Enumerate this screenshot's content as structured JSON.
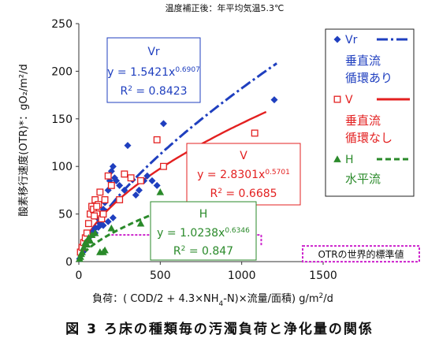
{
  "chart_data": {
    "type": "scatter",
    "title": "温度補正後：年平均気温5.3℃",
    "ylabel": "酸素移行速度(OTR)*：gO₂/m²/d",
    "xlabel_parts": [
      "負荷：( COD/2 + 4.3×NH",
      "4",
      "-N)×流量/面積) g/m",
      "2",
      "/d"
    ],
    "xlim": [
      0,
      1500
    ],
    "ylim": [
      0,
      250
    ],
    "xticks": [
      0,
      500,
      1000,
      1500
    ],
    "yticks": [
      0,
      50,
      100,
      150,
      200,
      250
    ],
    "grid": false,
    "legend_position": "right",
    "series": [
      {
        "key": "vr",
        "legend_label": "Vr",
        "legend_desc": [
          "垂直流",
          "循環あり"
        ],
        "marker": "diamond",
        "color": "#1f3fbf",
        "line_style": "dashdot",
        "fit": {
          "a": 1.5421,
          "b": 0.6907,
          "r2": 0.8423,
          "x_range": [
            5,
            1215
          ]
        },
        "eq_box": {
          "name": "Vr",
          "eq_prefix": "y = 1.5421x",
          "exp": "0.6907",
          "r2_prefix": "R",
          "r2_sup": "2",
          "r2_value": " = 0.8423"
        },
        "points": [
          [
            5,
            3
          ],
          [
            25,
            10
          ],
          [
            45,
            20
          ],
          [
            60,
            25
          ],
          [
            80,
            28
          ],
          [
            85,
            31
          ],
          [
            100,
            35
          ],
          [
            120,
            45
          ],
          [
            130,
            40
          ],
          [
            140,
            50
          ],
          [
            150,
            55
          ],
          [
            160,
            62
          ],
          [
            180,
            75
          ],
          [
            190,
            85
          ],
          [
            200,
            95
          ],
          [
            210,
            100
          ],
          [
            220,
            88
          ],
          [
            230,
            85
          ],
          [
            250,
            80
          ],
          [
            280,
            75
          ],
          [
            300,
            122
          ],
          [
            330,
            86
          ],
          [
            350,
            70
          ],
          [
            370,
            75
          ],
          [
            400,
            85
          ],
          [
            420,
            90
          ],
          [
            450,
            85
          ],
          [
            480,
            80
          ],
          [
            520,
            145
          ],
          [
            1200,
            170
          ],
          [
            180,
            42
          ],
          [
            210,
            46
          ],
          [
            150,
            38
          ],
          [
            120,
            36
          ],
          [
            100,
            30
          ]
        ]
      },
      {
        "key": "v",
        "legend_label": "V",
        "legend_desc": [
          "垂直流",
          "循環なし"
        ],
        "marker": "square-open",
        "color": "#e32020",
        "line_style": "solid",
        "fit": {
          "a": 2.8301,
          "b": 0.5701,
          "r2": 0.6685,
          "x_range": [
            3,
            1150
          ]
        },
        "eq_box": {
          "name": "V",
          "eq_prefix": "y = 2.8301x",
          "exp": "0.5701",
          "r2_prefix": "R",
          "r2_sup": "2",
          "r2_value": " = 0.6685"
        },
        "points": [
          [
            10,
            10
          ],
          [
            20,
            15
          ],
          [
            30,
            20
          ],
          [
            40,
            25
          ],
          [
            50,
            30
          ],
          [
            60,
            40
          ],
          [
            70,
            50
          ],
          [
            80,
            58
          ],
          [
            90,
            55
          ],
          [
            100,
            65
          ],
          [
            110,
            50
          ],
          [
            120,
            60
          ],
          [
            130,
            73
          ],
          [
            140,
            45
          ],
          [
            150,
            50
          ],
          [
            160,
            65
          ],
          [
            180,
            90
          ],
          [
            200,
            80
          ],
          [
            250,
            65
          ],
          [
            280,
            92
          ],
          [
            320,
            88
          ],
          [
            380,
            85
          ],
          [
            480,
            128
          ],
          [
            520,
            100
          ],
          [
            640,
            47
          ],
          [
            1080,
            135
          ],
          [
            110,
            58
          ],
          [
            95,
            48
          ]
        ]
      },
      {
        "key": "h",
        "legend_label": "H",
        "legend_desc": [
          "水平流"
        ],
        "marker": "triangle",
        "color": "#2a8a2a",
        "line_style": "dashed",
        "fit": {
          "a": 1.0238,
          "b": 0.6346,
          "r2": 0.847,
          "x_range": [
            3,
            580
          ]
        },
        "eq_box": {
          "name": "H",
          "eq_prefix": "y = 1.0238x",
          "exp": "0.6346",
          "r2_prefix": "R",
          "r2_sup": "2",
          "r2_value": " = 0.847"
        },
        "points": [
          [
            5,
            3
          ],
          [
            10,
            5
          ],
          [
            15,
            8
          ],
          [
            20,
            10
          ],
          [
            30,
            15
          ],
          [
            40,
            20
          ],
          [
            60,
            25
          ],
          [
            80,
            28
          ],
          [
            100,
            30
          ],
          [
            130,
            10
          ],
          [
            150,
            10
          ],
          [
            160,
            12
          ],
          [
            200,
            35
          ],
          [
            380,
            40
          ],
          [
            500,
            73
          ],
          [
            50,
            18
          ],
          [
            70,
            22
          ]
        ]
      }
    ],
    "reference": {
      "label": "OTRの世界的標準値",
      "y": 28,
      "x_range": [
        200,
        1120
      ],
      "color": "#cc22cc"
    }
  },
  "caption": "図 3 ろ床の種類毎の汚濁負荷と浄化量の関係"
}
